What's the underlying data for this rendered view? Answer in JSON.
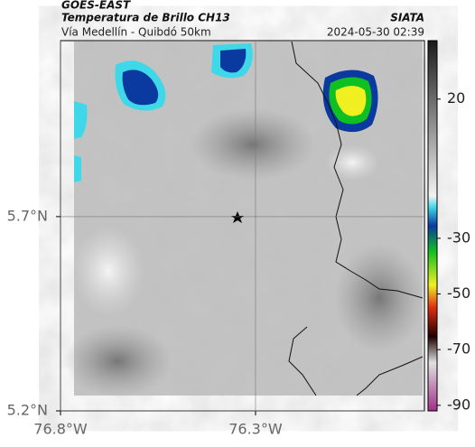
{
  "header": {
    "title": "GOES-EAST",
    "subtitle": "Temperatura de Brillo CH13",
    "source": "SIATA",
    "region": "Vía Medellín - Quibdó 50km",
    "timestamp": "2024-05-30 02:39"
  },
  "map": {
    "xlim": [
      -76.8,
      -75.867
    ],
    "ylim": [
      5.2,
      6.153
    ],
    "xticks": [
      {
        "value": -76.8,
        "label": "76.8°W"
      },
      {
        "value": -76.3,
        "label": "76.3°W"
      }
    ],
    "yticks": [
      {
        "value": 5.2,
        "label": "5.2°N"
      },
      {
        "value": 5.7,
        "label": "5.7°N"
      }
    ],
    "grid": true
  },
  "colorbar": {
    "lim": [
      -92,
      41
    ],
    "ticks": [
      20,
      -30,
      -50,
      -70,
      -90
    ]
  }
}
